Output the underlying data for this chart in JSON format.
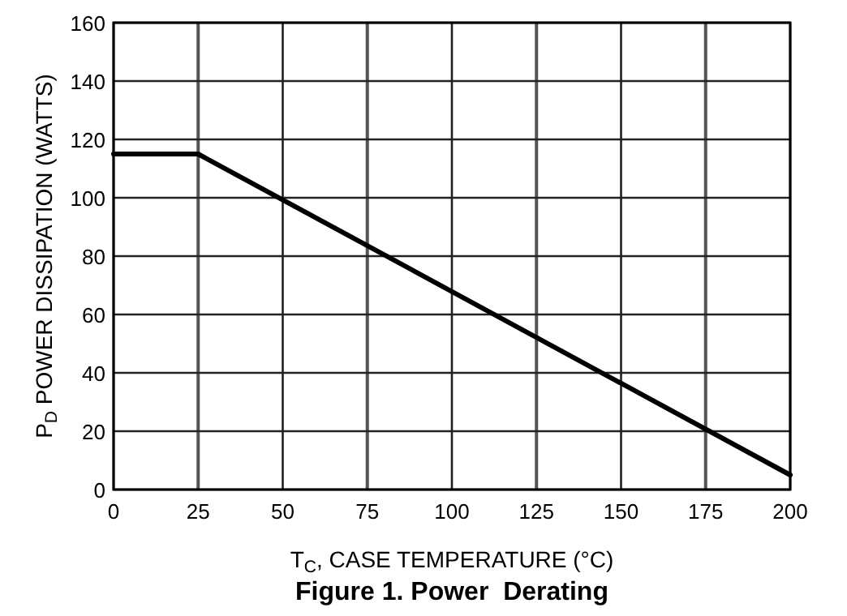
{
  "chart_data": {
    "type": "line",
    "title": "Figure 1. Power  Derating",
    "xlabel": "T$_{C}$, CASE TEMPERATURE (°C)",
    "ylabel": "P$_{D}$ POWER DISSIPATION (WATTS)",
    "x": [
      0,
      25,
      200
    ],
    "series": [
      {
        "color": "#000000",
        "values": [
          115,
          115,
          5
        ]
      }
    ],
    "xlim": [
      0,
      200
    ],
    "xticks": [
      0,
      25,
      50,
      75,
      100,
      125,
      150,
      175,
      200
    ],
    "ylim": [
      0,
      160
    ],
    "yticks": [
      0,
      20,
      40,
      60,
      80,
      100,
      120,
      140,
      160
    ],
    "grid": true,
    "marker": "none",
    "line_style": "solid"
  }
}
